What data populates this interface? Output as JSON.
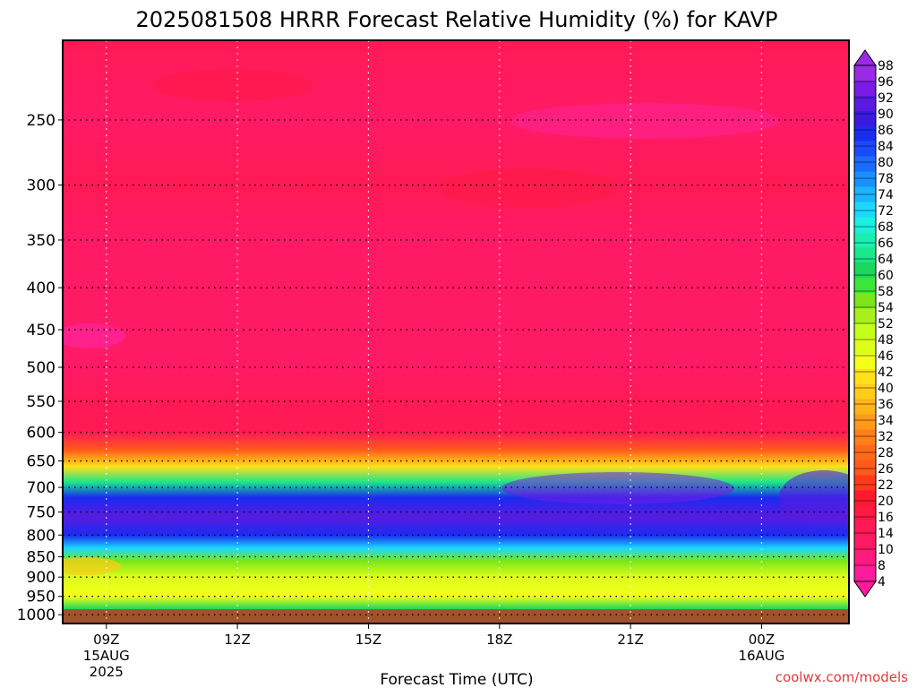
{
  "chart_data": {
    "type": "heatmap",
    "title": "2025081508 HRRR Forecast Relative Humidity (%) for KAVP",
    "xlabel": "Forecast Time (UTC)",
    "ylabel": "",
    "x_ticks": [
      {
        "t": 0,
        "label": "09Z",
        "sub1": "15AUG",
        "sub2": "2025"
      },
      {
        "t": 3,
        "label": "12Z",
        "sub1": "",
        "sub2": ""
      },
      {
        "t": 6,
        "label": "15Z",
        "sub1": "",
        "sub2": ""
      },
      {
        "t": 9,
        "label": "18Z",
        "sub1": "",
        "sub2": ""
      },
      {
        "t": 12,
        "label": "21Z",
        "sub1": "",
        "sub2": ""
      },
      {
        "t": 15,
        "label": "00Z",
        "sub1": "16AUG",
        "sub2": ""
      }
    ],
    "x_range": [
      -1,
      17
    ],
    "y_ticks": [
      250,
      300,
      350,
      400,
      450,
      500,
      550,
      600,
      650,
      700,
      750,
      800,
      850,
      900,
      950,
      1000
    ],
    "y_range_hPa": [
      200,
      1025
    ],
    "y_scale": "log-pressure",
    "ground_level_hPa": 985,
    "ground_color": "#a0522d",
    "colorbar_levels": [
      4,
      8,
      10,
      14,
      16,
      20,
      22,
      26,
      28,
      32,
      34,
      36,
      40,
      42,
      46,
      48,
      52,
      54,
      58,
      60,
      64,
      66,
      68,
      72,
      74,
      78,
      80,
      84,
      86,
      90,
      92,
      96,
      98
    ],
    "colorbar_colors": [
      "#ff1a9e",
      "#ff1a80",
      "#ff1a66",
      "#ff1a55",
      "#ff1a44",
      "#ff1a30",
      "#ff3a1a",
      "#ff5a1a",
      "#ff6a1a",
      "#ff801a",
      "#ff9a1a",
      "#ffb41a",
      "#ffcc1a",
      "#ffe01a",
      "#f4ff1a",
      "#dcff1a",
      "#c4ff1a",
      "#a8f01a",
      "#7ae61a",
      "#3ae63a",
      "#1ad65a",
      "#1ae68a",
      "#1af0b4",
      "#1af0e0",
      "#1ad8ff",
      "#1ab4ff",
      "#1a90ff",
      "#1a6cff",
      "#1a4cff",
      "#1a2cf0",
      "#3a1ae0",
      "#5a1ae0",
      "#7a1ae6",
      "#9a2ae6"
    ],
    "rh_profile": [
      {
        "p": 200,
        "rh": 12
      },
      {
        "p": 250,
        "rh": 8
      },
      {
        "p": 300,
        "rh": 11
      },
      {
        "p": 350,
        "rh": 9
      },
      {
        "p": 400,
        "rh": 9
      },
      {
        "p": 450,
        "rh": 9
      },
      {
        "p": 500,
        "rh": 9
      },
      {
        "p": 550,
        "rh": 10
      },
      {
        "p": 600,
        "rh": 12
      },
      {
        "p": 630,
        "rh": 24
      },
      {
        "p": 660,
        "rh": 40
      },
      {
        "p": 690,
        "rh": 64
      },
      {
        "p": 720,
        "rh": 86
      },
      {
        "p": 760,
        "rh": 93
      },
      {
        "p": 800,
        "rh": 88
      },
      {
        "p": 830,
        "rh": 72
      },
      {
        "p": 860,
        "rh": 56
      },
      {
        "p": 900,
        "rh": 46
      },
      {
        "p": 950,
        "rh": 44
      },
      {
        "p": 985,
        "rh": 62
      }
    ],
    "grid": true
  },
  "credit": "coolwx.com/models"
}
